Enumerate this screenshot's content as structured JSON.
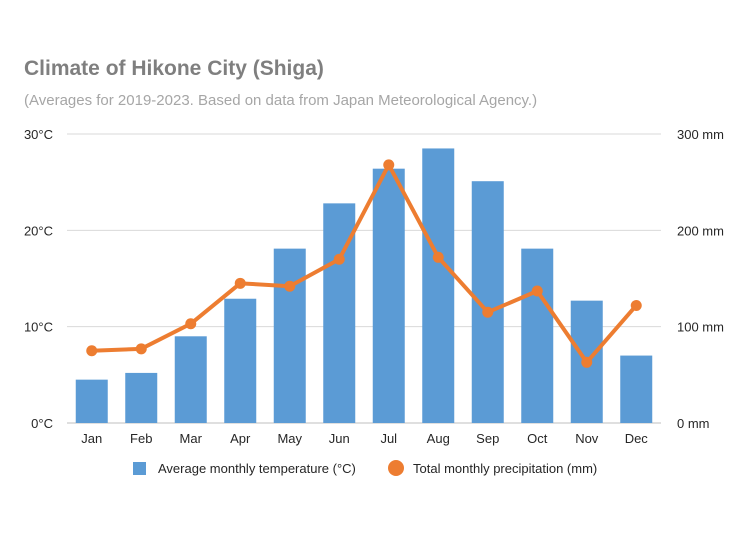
{
  "chart_data": {
    "type": "bar",
    "title": "Climate of Hikone City (Shiga)",
    "subtitle": "(Averages for 2019-2023. Based on data from Japan Meteorological Agency.)",
    "categories": [
      "Jan",
      "Feb",
      "Mar",
      "Apr",
      "May",
      "Jun",
      "Jul",
      "Aug",
      "Sep",
      "Oct",
      "Nov",
      "Dec"
    ],
    "series": [
      {
        "name": "Average monthly temperature (°C)",
        "type": "bar",
        "axis": "left",
        "color": "#5b9bd5",
        "values": [
          4.5,
          5.2,
          9.0,
          12.9,
          18.1,
          22.8,
          26.4,
          28.5,
          25.1,
          18.1,
          12.7,
          7.0
        ]
      },
      {
        "name": "Total monthly precipitation (mm)",
        "type": "line",
        "axis": "right",
        "color": "#ed7d31",
        "values": [
          75,
          77,
          103,
          145,
          142,
          170,
          268,
          172,
          115,
          137,
          63,
          122
        ]
      }
    ],
    "y_left": {
      "ylim": [
        0,
        30
      ],
      "ticks": [
        0,
        10,
        20,
        30
      ],
      "tick_labels": [
        "0°C",
        "10°C",
        "20°C",
        "30°C"
      ]
    },
    "y_right": {
      "ylim": [
        0,
        300
      ],
      "ticks": [
        0,
        100,
        200,
        300
      ],
      "tick_labels": [
        "0 mm",
        "100 mm",
        "200 mm",
        "300 mm"
      ]
    },
    "grid": true,
    "legend_placement": "bottom"
  }
}
